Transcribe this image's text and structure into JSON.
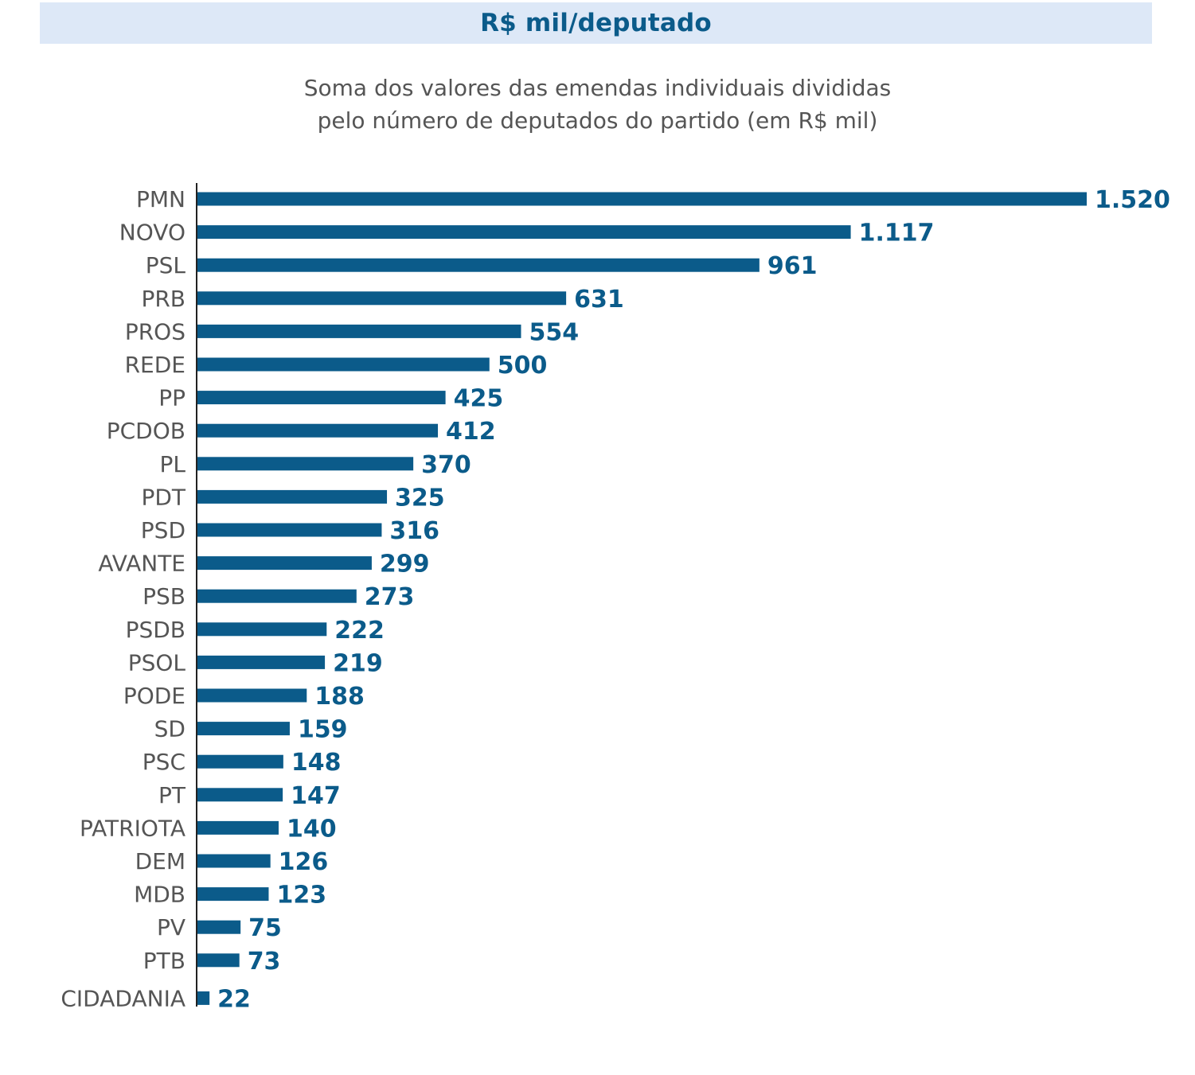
{
  "header": {
    "title": "R$ mil/deputado"
  },
  "chart_data": {
    "type": "bar",
    "orientation": "horizontal",
    "title": "R$ mil/deputado",
    "subtitle": [
      "Soma dos valores das emendas individuais divididas",
      "pelo número de deputados do partido (em R$ mil)"
    ],
    "categories": [
      "PMN",
      "NOVO",
      "PSL",
      "PRB",
      "PROS",
      "REDE",
      "PP",
      "PCDOB",
      "PL",
      "PDT",
      "PSD",
      "AVANTE",
      "PSB",
      "PSDB",
      "PSOL",
      "PODE",
      "SD",
      "PSC",
      "PT",
      "PATRIOTA",
      "DEM",
      "MDB",
      "PV",
      "PTB",
      "CIDADANIA"
    ],
    "values": [
      1520,
      1117,
      961,
      631,
      554,
      500,
      425,
      412,
      370,
      325,
      316,
      299,
      273,
      222,
      219,
      188,
      159,
      148,
      147,
      140,
      126,
      123,
      75,
      73,
      22
    ],
    "value_labels": [
      "1.520",
      "1.117",
      "961",
      "631",
      "554",
      "500",
      "425",
      "412",
      "370",
      "325",
      "316",
      "299",
      "273",
      "222",
      "219",
      "188",
      "159",
      "148",
      "147",
      "140",
      "126",
      "123",
      "75",
      "73",
      "22"
    ],
    "xlim": [
      0,
      1520
    ],
    "grid": false,
    "legend": "none",
    "colors": {
      "bar": "#0b5b8a",
      "value_text": "#0b5b8a",
      "category_text": "#555555",
      "banner_bg": "#dde8f7",
      "subtitle_text": "#555555"
    }
  }
}
